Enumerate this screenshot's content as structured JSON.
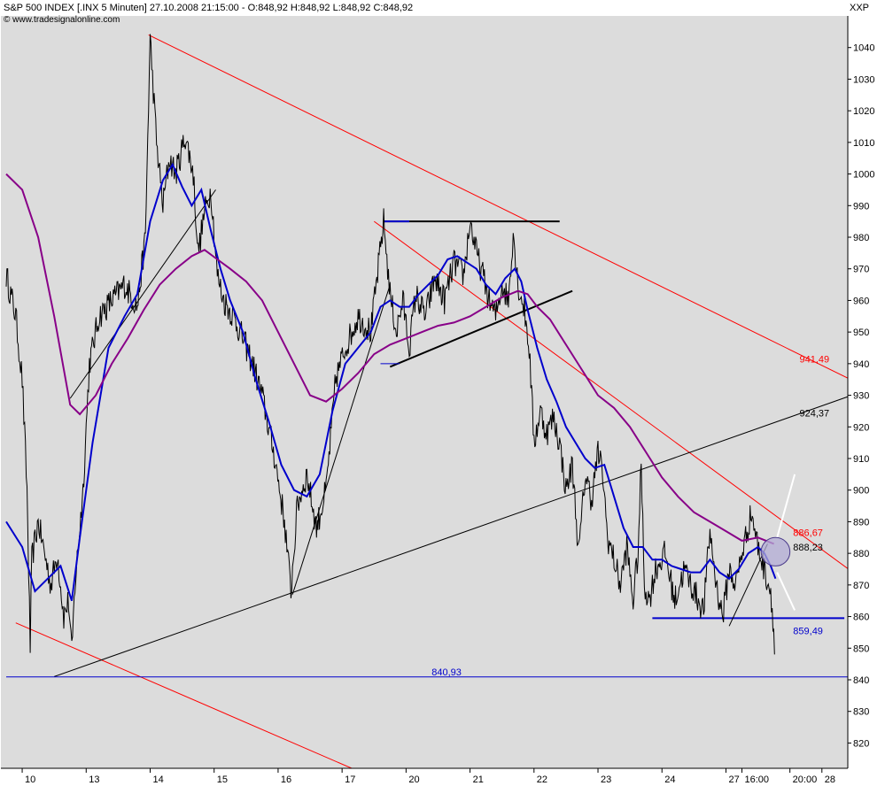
{
  "header": {
    "title": "S&P 500 INDEX [.INX  5 Minuten] 27.10.2008 21:15:00 - O:848,92 H:848,92 L:848,92 C:848,92",
    "source": "© www.tradesignalonline.com",
    "symbol_code": "XXP"
  },
  "chart_data": {
    "type": "line",
    "ylim": [
      812,
      1050
    ],
    "y_ticks": [
      "1040",
      "1030",
      "1020",
      "1010",
      "1000",
      "990",
      "980",
      "970",
      "960",
      "950",
      "940",
      "930",
      "920",
      "910",
      "900",
      "890",
      "880",
      "870",
      "860",
      "850",
      "840",
      "830",
      "820"
    ],
    "y_tick_values": [
      1040,
      1030,
      1020,
      1010,
      1000,
      990,
      980,
      970,
      960,
      950,
      940,
      930,
      920,
      910,
      900,
      890,
      880,
      870,
      860,
      850,
      840,
      830,
      820
    ],
    "x_ticks": [
      "10",
      "13",
      "14",
      "15",
      "16",
      "17",
      "20",
      "21",
      "22",
      "23",
      "24",
      "27",
      "16:00",
      "20:00",
      "28"
    ],
    "x_tick_values": [
      0.5,
      2.5,
      4.5,
      6.5,
      8.5,
      10.5,
      12.5,
      14.5,
      16.5,
      18.5,
      20.5,
      22.5,
      23.0,
      24.5,
      25.5
    ],
    "xlim": [
      0,
      27.5
    ],
    "grid": false,
    "annotations": [
      {
        "text": "941,49",
        "x": 24.8,
        "y": 941.49,
        "color": "#ff0000"
      },
      {
        "text": "924,37",
        "x": 24.8,
        "y": 924.37,
        "color": "#000000"
      },
      {
        "text": "886,67",
        "x": 24.6,
        "y": 886.67,
        "color": "#ff0000"
      },
      {
        "text": "888,23",
        "x": 24.6,
        "y": 882.0,
        "color": "#000000"
      },
      {
        "text": "859,49",
        "x": 24.6,
        "y": 855.6,
        "color": "#0000cc"
      },
      {
        "text": "840,93",
        "x": 13.3,
        "y": 842.5,
        "color": "#0000cc"
      }
    ],
    "price_anchors": [
      [
        0,
        968
      ],
      [
        0.3,
        955
      ],
      [
        0.5,
        935
      ],
      [
        0.65,
        900
      ],
      [
        0.75,
        850
      ],
      [
        0.8,
        878
      ],
      [
        1.0,
        890
      ],
      [
        1.2,
        880
      ],
      [
        1.4,
        870
      ],
      [
        1.6,
        880
      ],
      [
        1.8,
        860
      ],
      [
        1.95,
        865
      ],
      [
        2.05,
        848
      ],
      [
        2.15,
        870
      ],
      [
        2.4,
        900
      ],
      [
        2.6,
        940
      ],
      [
        2.9,
        955
      ],
      [
        3.3,
        960
      ],
      [
        3.7,
        965
      ],
      [
        4.1,
        958
      ],
      [
        4.35,
        980
      ],
      [
        4.5,
        1043
      ],
      [
        4.7,
        1010
      ],
      [
        4.9,
        990
      ],
      [
        5.1,
        1005
      ],
      [
        5.3,
        1000
      ],
      [
        5.6,
        1012
      ],
      [
        5.85,
        1000
      ],
      [
        6.0,
        975
      ],
      [
        6.2,
        988
      ],
      [
        6.4,
        995
      ],
      [
        6.6,
        968
      ],
      [
        6.8,
        960
      ],
      [
        7.1,
        955
      ],
      [
        7.4,
        948
      ],
      [
        7.7,
        940
      ],
      [
        8.0,
        930
      ],
      [
        8.4,
        910
      ],
      [
        8.7,
        890
      ],
      [
        8.9,
        868
      ],
      [
        9.1,
        895
      ],
      [
        9.4,
        905
      ],
      [
        9.7,
        888
      ],
      [
        10.0,
        900
      ],
      [
        10.3,
        935
      ],
      [
        10.6,
        945
      ],
      [
        11.0,
        955
      ],
      [
        11.4,
        950
      ],
      [
        11.8,
        985
      ],
      [
        12.0,
        962
      ],
      [
        12.2,
        950
      ],
      [
        12.4,
        960
      ],
      [
        12.6,
        945
      ],
      [
        12.8,
        962
      ],
      [
        13.1,
        955
      ],
      [
        13.4,
        967
      ],
      [
        13.7,
        960
      ],
      [
        14.0,
        972
      ],
      [
        14.3,
        968
      ],
      [
        14.5,
        985
      ],
      [
        14.7,
        975
      ],
      [
        14.9,
        968
      ],
      [
        15.1,
        960
      ],
      [
        15.3,
        955
      ],
      [
        15.5,
        965
      ],
      [
        15.7,
        960
      ],
      [
        15.85,
        982
      ],
      [
        16.0,
        965
      ],
      [
        16.2,
        957
      ],
      [
        16.35,
        945
      ],
      [
        16.5,
        915
      ],
      [
        16.7,
        925
      ],
      [
        16.9,
        918
      ],
      [
        17.1,
        923
      ],
      [
        17.3,
        915
      ],
      [
        17.5,
        900
      ],
      [
        17.7,
        908
      ],
      [
        17.9,
        880
      ],
      [
        18.1,
        905
      ],
      [
        18.3,
        897
      ],
      [
        18.5,
        912
      ],
      [
        18.65,
        905
      ],
      [
        18.8,
        885
      ],
      [
        19.0,
        878
      ],
      [
        19.2,
        870
      ],
      [
        19.4,
        882
      ],
      [
        19.6,
        865
      ],
      [
        19.75,
        880
      ],
      [
        19.85,
        908
      ],
      [
        19.95,
        870
      ],
      [
        20.1,
        865
      ],
      [
        20.3,
        875
      ],
      [
        20.6,
        880
      ],
      [
        20.9,
        865
      ],
      [
        21.2,
        875
      ],
      [
        21.5,
        868
      ],
      [
        21.8,
        862
      ],
      [
        22.0,
        887
      ],
      [
        22.2,
        870
      ],
      [
        22.4,
        860
      ],
      [
        22.6,
        875
      ],
      [
        22.8,
        870
      ],
      [
        23.0,
        880
      ],
      [
        23.3,
        893
      ],
      [
        23.5,
        882
      ],
      [
        23.7,
        875
      ],
      [
        23.9,
        868
      ],
      [
        23.97,
        860
      ],
      [
        24.02,
        848
      ]
    ],
    "series": [
      {
        "color": "#0000cc",
        "points": [
          [
            0,
            890
          ],
          [
            0.5,
            882
          ],
          [
            0.9,
            868
          ],
          [
            1.3,
            872
          ],
          [
            1.7,
            876
          ],
          [
            2.05,
            865
          ],
          [
            2.3,
            885
          ],
          [
            2.7,
            915
          ],
          [
            3.2,
            945
          ],
          [
            3.7,
            955
          ],
          [
            4.1,
            962
          ],
          [
            4.5,
            985
          ],
          [
            4.9,
            998
          ],
          [
            5.2,
            1003
          ],
          [
            5.5,
            996
          ],
          [
            5.8,
            990
          ],
          [
            6.1,
            995
          ],
          [
            6.4,
            982
          ],
          [
            6.7,
            970
          ],
          [
            7.0,
            960
          ],
          [
            7.4,
            950
          ],
          [
            7.8,
            935
          ],
          [
            8.2,
            922
          ],
          [
            8.6,
            908
          ],
          [
            9.0,
            900
          ],
          [
            9.4,
            898
          ],
          [
            9.8,
            905
          ],
          [
            10.2,
            925
          ],
          [
            10.6,
            940
          ],
          [
            11.0,
            945
          ],
          [
            11.4,
            950
          ],
          [
            11.7,
            958
          ],
          [
            12.0,
            960
          ],
          [
            12.3,
            958
          ],
          [
            12.6,
            958
          ],
          [
            12.9,
            962
          ],
          [
            13.2,
            965
          ],
          [
            13.5,
            968
          ],
          [
            13.8,
            973
          ],
          [
            14.1,
            974
          ],
          [
            14.4,
            972
          ],
          [
            14.7,
            970
          ],
          [
            15.0,
            965
          ],
          [
            15.3,
            962
          ],
          [
            15.6,
            967
          ],
          [
            15.9,
            970
          ],
          [
            16.1,
            966
          ],
          [
            16.3,
            957
          ],
          [
            16.6,
            945
          ],
          [
            16.9,
            935
          ],
          [
            17.2,
            928
          ],
          [
            17.5,
            920
          ],
          [
            17.8,
            915
          ],
          [
            18.1,
            910
          ],
          [
            18.4,
            907
          ],
          [
            18.7,
            908
          ],
          [
            19.0,
            898
          ],
          [
            19.3,
            888
          ],
          [
            19.6,
            882
          ],
          [
            19.9,
            882
          ],
          [
            20.2,
            878
          ],
          [
            20.5,
            878
          ],
          [
            20.8,
            876
          ],
          [
            21.1,
            875
          ],
          [
            21.4,
            874
          ],
          [
            21.7,
            874
          ],
          [
            22.0,
            878
          ],
          [
            22.3,
            874
          ],
          [
            22.6,
            872
          ],
          [
            22.9,
            875
          ],
          [
            23.2,
            880
          ],
          [
            23.5,
            882
          ],
          [
            23.7,
            880
          ],
          [
            23.9,
            876
          ],
          [
            24.05,
            872
          ]
        ]
      },
      {
        "color": "#880088",
        "points": [
          [
            0,
            1000
          ],
          [
            0.5,
            995
          ],
          [
            1.0,
            980
          ],
          [
            1.5,
            955
          ],
          [
            2.0,
            927
          ],
          [
            2.3,
            924
          ],
          [
            2.8,
            930
          ],
          [
            3.3,
            940
          ],
          [
            3.8,
            948
          ],
          [
            4.3,
            957
          ],
          [
            4.8,
            965
          ],
          [
            5.3,
            970
          ],
          [
            5.8,
            974
          ],
          [
            6.2,
            976
          ],
          [
            6.6,
            973
          ],
          [
            7.0,
            970
          ],
          [
            7.5,
            966
          ],
          [
            8.0,
            960
          ],
          [
            8.5,
            950
          ],
          [
            9.0,
            940
          ],
          [
            9.5,
            930
          ],
          [
            10.0,
            928
          ],
          [
            10.5,
            932
          ],
          [
            11.0,
            937
          ],
          [
            11.5,
            943
          ],
          [
            12.0,
            946
          ],
          [
            12.5,
            948
          ],
          [
            13.0,
            950
          ],
          [
            13.5,
            952
          ],
          [
            14.0,
            953
          ],
          [
            14.5,
            955
          ],
          [
            15.0,
            958
          ],
          [
            15.5,
            961
          ],
          [
            16.0,
            963
          ],
          [
            16.3,
            962
          ],
          [
            16.6,
            958
          ],
          [
            17.0,
            954
          ],
          [
            17.5,
            946
          ],
          [
            18.0,
            938
          ],
          [
            18.5,
            930
          ],
          [
            19.0,
            926
          ],
          [
            19.5,
            920
          ],
          [
            20.0,
            912
          ],
          [
            20.5,
            904
          ],
          [
            21.0,
            898
          ],
          [
            21.5,
            893
          ],
          [
            22.0,
            890
          ],
          [
            22.5,
            887
          ],
          [
            23.0,
            884
          ],
          [
            23.5,
            885
          ],
          [
            24.0,
            883
          ]
        ]
      }
    ],
    "trendlines": [
      {
        "color": "#ff0000",
        "width": 1,
        "points": [
          [
            4.45,
            1044
          ],
          [
            27.0,
            932
          ]
        ]
      },
      {
        "color": "#ff0000",
        "width": 1,
        "points": [
          [
            11.5,
            985
          ],
          [
            26.6,
            873
          ]
        ]
      },
      {
        "color": "#ff0000",
        "width": 1,
        "points": [
          [
            0.3,
            858
          ],
          [
            10.8,
            812
          ]
        ]
      },
      {
        "color": "#000000",
        "width": 1,
        "points": [
          [
            1.5,
            841
          ],
          [
            27.0,
            932
          ]
        ]
      },
      {
        "color": "#000000",
        "width": 1,
        "points": [
          [
            8.95,
            867
          ],
          [
            12.0,
            965
          ]
        ]
      },
      {
        "color": "#000000",
        "width": 1,
        "points": [
          [
            2.0,
            929
          ],
          [
            6.55,
            995
          ]
        ]
      },
      {
        "color": "#000000",
        "width": 2,
        "points": [
          [
            11.8,
            985
          ],
          [
            17.3,
            985
          ]
        ]
      },
      {
        "color": "#000000",
        "width": 2,
        "points": [
          [
            12.0,
            939
          ],
          [
            17.7,
            963
          ]
        ]
      },
      {
        "color": "#0000cc",
        "width": 2,
        "points": [
          [
            11.8,
            985
          ],
          [
            12.6,
            985
          ]
        ]
      },
      {
        "color": "#0000cc",
        "width": 1,
        "points": [
          [
            11.7,
            940
          ],
          [
            12.3,
            940
          ]
        ]
      },
      {
        "color": "#0000cc",
        "width": 2,
        "points": [
          [
            20.2,
            859.49
          ],
          [
            26.2,
            859.49
          ]
        ]
      },
      {
        "color": "#0000cc",
        "width": 1,
        "points": [
          [
            0,
            840.93
          ],
          [
            27.5,
            840.93
          ]
        ]
      },
      {
        "color": "#000000",
        "width": 1,
        "points": [
          [
            22.6,
            857
          ],
          [
            23.8,
            883
          ]
        ]
      },
      {
        "color": "#ffffff",
        "width": 2,
        "points": [
          [
            24.1,
            885
          ],
          [
            24.65,
            905
          ]
        ]
      },
      {
        "color": "#ffffff",
        "width": 2,
        "points": [
          [
            24.1,
            874
          ],
          [
            24.65,
            862
          ]
        ]
      }
    ],
    "highlight": {
      "cx": 24.05,
      "cy": 880.5,
      "rx_days": 0.45,
      "ry_units": 4.5,
      "fill": "#b3acd6",
      "stroke": "#4a3a8a"
    }
  }
}
